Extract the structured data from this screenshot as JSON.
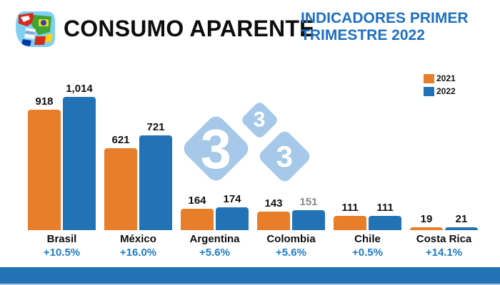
{
  "header": {
    "title": "CONSUMO APARENTE",
    "subtitle": "INDICADORES PRIMER TRIMESTRE 2022",
    "subtitle_color": "#1d6fc3",
    "logo": "latam-flags-logo"
  },
  "legend": {
    "items": [
      {
        "label": "2021",
        "color": "#e87d2a"
      },
      {
        "label": "2022",
        "color": "#2273b6"
      }
    ]
  },
  "watermark": {
    "digits": [
      "3",
      "3",
      "3"
    ],
    "color": "#a6c9e9"
  },
  "chart_data": {
    "type": "bar",
    "title": "CONSUMO APARENTE",
    "subtitle": "INDICADORES PRIMER TRIMESTRE 2022",
    "categories": [
      "Brasil",
      "México",
      "Argentina",
      "Colombia",
      "Chile",
      "Costa Rica"
    ],
    "series": [
      {
        "name": "2021",
        "color": "#e87d2a",
        "values": [
          918,
          621,
          164,
          143,
          111,
          19
        ],
        "labels": [
          "918",
          "621",
          "164",
          "143",
          "111",
          "19"
        ]
      },
      {
        "name": "2022",
        "color": "#2273b6",
        "values": [
          1014,
          721,
          174,
          151,
          111,
          21
        ],
        "labels": [
          "1,014",
          "721",
          "174",
          "151",
          "111",
          "21"
        ]
      }
    ],
    "growth_labels": [
      "+10.5%",
      "+16.0%",
      "+5.6%",
      "+5.6%",
      "+0.5%",
      "+14.1%"
    ],
    "muted_value_labels": [
      {
        "series": 1,
        "index": 3
      }
    ],
    "ylim": [
      0,
      1014
    ],
    "grid": false,
    "xlabel": "",
    "ylabel": "",
    "legend_position": "top-right"
  },
  "footer": {
    "color": "#2272b5"
  }
}
